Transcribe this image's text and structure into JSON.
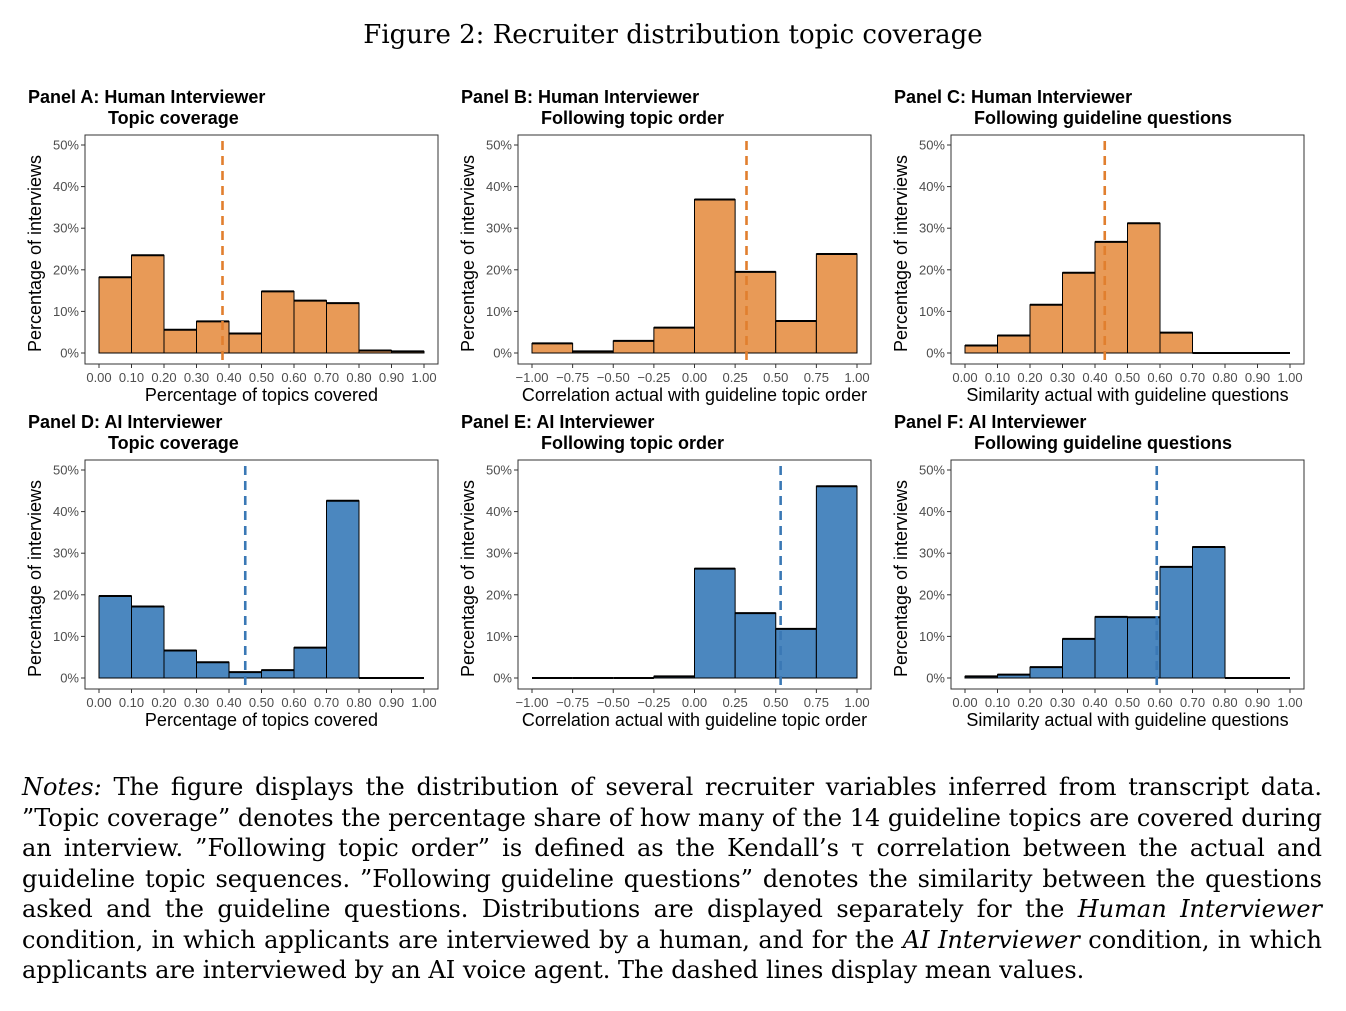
{
  "figure_title": "Figure 2: Recruiter distribution topic coverage",
  "colors": {
    "human": "#E89A57",
    "ai": "#4B87BF",
    "human_mean": "#E17F2E",
    "ai_mean": "#3A78B5"
  },
  "chart_data": [
    {
      "type": "bar",
      "panel_label": "Panel A: Human Interviewer",
      "title": "Topic coverage",
      "xlabel": "Percentage of topics covered",
      "ylabel": "Percentage of interviews",
      "color": "#E89A57",
      "mean_color": "#E17F2E",
      "xlim": [
        0,
        1
      ],
      "ylim": [
        0,
        50
      ],
      "xticks": [
        0,
        0.1,
        0.2,
        0.3,
        0.4,
        0.5,
        0.6,
        0.7,
        0.8,
        0.9,
        1.0
      ],
      "xtick_labels": [
        "0.00",
        "0.10",
        "0.20",
        "0.30",
        "0.40",
        "0.50",
        "0.60",
        "0.70",
        "0.80",
        "0.90",
        "1.00"
      ],
      "yticks": [
        0,
        10,
        20,
        30,
        40,
        50
      ],
      "ytick_labels": [
        "0%",
        "10%",
        "20%",
        "30%",
        "40%",
        "50%"
      ],
      "bins": [
        [
          0,
          0.1
        ],
        [
          0.1,
          0.2
        ],
        [
          0.2,
          0.3
        ],
        [
          0.3,
          0.4
        ],
        [
          0.4,
          0.5
        ],
        [
          0.5,
          0.6
        ],
        [
          0.6,
          0.7
        ],
        [
          0.7,
          0.8
        ],
        [
          0.8,
          0.9
        ],
        [
          0.9,
          1.0
        ]
      ],
      "values": [
        18.2,
        23.5,
        5.6,
        7.6,
        4.7,
        14.8,
        12.6,
        12.0,
        0.6,
        0.4
      ],
      "mean": 0.38
    },
    {
      "type": "bar",
      "panel_label": "Panel B: Human Interviewer",
      "title": "Following topic order",
      "xlabel": "Correlation actual with guideline topic order",
      "ylabel": "Percentage of interviews",
      "color": "#E89A57",
      "mean_color": "#E17F2E",
      "xlim": [
        -1,
        1
      ],
      "ylim": [
        0,
        50
      ],
      "xticks": [
        -1,
        -0.75,
        -0.5,
        -0.25,
        0,
        0.25,
        0.5,
        0.75,
        1
      ],
      "xtick_labels": [
        "−1.00",
        "−0.75",
        "−0.50",
        "−0.25",
        "0.00",
        "0.25",
        "0.50",
        "0.75",
        "1.00"
      ],
      "yticks": [
        0,
        10,
        20,
        30,
        40,
        50
      ],
      "ytick_labels": [
        "0%",
        "10%",
        "20%",
        "30%",
        "40%",
        "50%"
      ],
      "bins": [
        [
          -1,
          -0.75
        ],
        [
          -0.75,
          -0.5
        ],
        [
          -0.5,
          -0.25
        ],
        [
          -0.25,
          0
        ],
        [
          0,
          0.25
        ],
        [
          0.25,
          0.5
        ],
        [
          0.5,
          0.75
        ],
        [
          0.75,
          1
        ]
      ],
      "values": [
        2.3,
        0.4,
        2.9,
        6.1,
        36.9,
        19.5,
        7.7,
        23.8
      ],
      "mean": 0.32
    },
    {
      "type": "bar",
      "panel_label": "Panel C: Human Interviewer",
      "title": "Following guideline questions",
      "xlabel": "Similarity actual with guideline questions",
      "ylabel": "Percentage of interviews",
      "color": "#E89A57",
      "mean_color": "#E17F2E",
      "xlim": [
        0,
        1
      ],
      "ylim": [
        0,
        50
      ],
      "xticks": [
        0,
        0.1,
        0.2,
        0.3,
        0.4,
        0.5,
        0.6,
        0.7,
        0.8,
        0.9,
        1.0
      ],
      "xtick_labels": [
        "0.00",
        "0.10",
        "0.20",
        "0.30",
        "0.40",
        "0.50",
        "0.60",
        "0.70",
        "0.80",
        "0.90",
        "1.00"
      ],
      "yticks": [
        0,
        10,
        20,
        30,
        40,
        50
      ],
      "ytick_labels": [
        "0%",
        "10%",
        "20%",
        "30%",
        "40%",
        "50%"
      ],
      "bins": [
        [
          0,
          0.1
        ],
        [
          0.1,
          0.2
        ],
        [
          0.2,
          0.3
        ],
        [
          0.3,
          0.4
        ],
        [
          0.4,
          0.5
        ],
        [
          0.5,
          0.6
        ],
        [
          0.6,
          0.7
        ],
        [
          0.7,
          0.8
        ],
        [
          0.8,
          0.9
        ],
        [
          0.9,
          1.0
        ]
      ],
      "values": [
        1.8,
        4.2,
        11.6,
        19.3,
        26.7,
        31.2,
        4.9,
        0,
        0,
        0
      ],
      "mean": 0.43
    },
    {
      "type": "bar",
      "panel_label": "Panel D: AI Interviewer",
      "title": "Topic coverage",
      "xlabel": "Percentage of topics covered",
      "ylabel": "Percentage of interviews",
      "color": "#4B87BF",
      "mean_color": "#3A78B5",
      "xlim": [
        0,
        1
      ],
      "ylim": [
        0,
        50
      ],
      "xticks": [
        0,
        0.1,
        0.2,
        0.3,
        0.4,
        0.5,
        0.6,
        0.7,
        0.8,
        0.9,
        1.0
      ],
      "xtick_labels": [
        "0.00",
        "0.10",
        "0.20",
        "0.30",
        "0.40",
        "0.50",
        "0.60",
        "0.70",
        "0.80",
        "0.90",
        "1.00"
      ],
      "yticks": [
        0,
        10,
        20,
        30,
        40,
        50
      ],
      "ytick_labels": [
        "0%",
        "10%",
        "20%",
        "30%",
        "40%",
        "50%"
      ],
      "bins": [
        [
          0,
          0.1
        ],
        [
          0.1,
          0.2
        ],
        [
          0.2,
          0.3
        ],
        [
          0.3,
          0.4
        ],
        [
          0.4,
          0.5
        ],
        [
          0.5,
          0.6
        ],
        [
          0.6,
          0.7
        ],
        [
          0.7,
          0.8
        ],
        [
          0.8,
          0.9
        ],
        [
          0.9,
          1.0
        ]
      ],
      "values": [
        19.7,
        17.2,
        6.6,
        3.8,
        1.4,
        1.9,
        7.3,
        42.6,
        0,
        0
      ],
      "mean": 0.45
    },
    {
      "type": "bar",
      "panel_label": "Panel E: AI Interviewer",
      "title": "Following topic order",
      "xlabel": "Correlation actual with guideline topic order",
      "ylabel": "Percentage of interviews",
      "color": "#4B87BF",
      "mean_color": "#3A78B5",
      "xlim": [
        -1,
        1
      ],
      "ylim": [
        0,
        50
      ],
      "xticks": [
        -1,
        -0.75,
        -0.5,
        -0.25,
        0,
        0.25,
        0.5,
        0.75,
        1
      ],
      "xtick_labels": [
        "−1.00",
        "−0.75",
        "−0.50",
        "−0.25",
        "0.00",
        "0.25",
        "0.50",
        "0.75",
        "1.00"
      ],
      "yticks": [
        0,
        10,
        20,
        30,
        40,
        50
      ],
      "ytick_labels": [
        "0%",
        "10%",
        "20%",
        "30%",
        "40%",
        "50%"
      ],
      "bins": [
        [
          -1,
          -0.75
        ],
        [
          -0.75,
          -0.5
        ],
        [
          -0.5,
          -0.25
        ],
        [
          -0.25,
          0
        ],
        [
          0,
          0.25
        ],
        [
          0.25,
          0.5
        ],
        [
          0.5,
          0.75
        ],
        [
          0.75,
          1
        ]
      ],
      "values": [
        0,
        0,
        0,
        0.4,
        26.3,
        15.6,
        11.8,
        46.1
      ],
      "mean": 0.53
    },
    {
      "type": "bar",
      "panel_label": "Panel F: AI Interviewer",
      "title": "Following guideline questions",
      "xlabel": "Similarity actual with guideline questions",
      "ylabel": "Percentage of interviews",
      "color": "#4B87BF",
      "mean_color": "#3A78B5",
      "xlim": [
        0,
        1
      ],
      "ylim": [
        0,
        50
      ],
      "xticks": [
        0,
        0.1,
        0.2,
        0.3,
        0.4,
        0.5,
        0.6,
        0.7,
        0.8,
        0.9,
        1.0
      ],
      "xtick_labels": [
        "0.00",
        "0.10",
        "0.20",
        "0.30",
        "0.40",
        "0.50",
        "0.60",
        "0.70",
        "0.80",
        "0.90",
        "1.00"
      ],
      "yticks": [
        0,
        10,
        20,
        30,
        40,
        50
      ],
      "ytick_labels": [
        "0%",
        "10%",
        "20%",
        "30%",
        "40%",
        "50%"
      ],
      "bins": [
        [
          0,
          0.1
        ],
        [
          0.1,
          0.2
        ],
        [
          0.2,
          0.3
        ],
        [
          0.3,
          0.4
        ],
        [
          0.4,
          0.5
        ],
        [
          0.5,
          0.6
        ],
        [
          0.6,
          0.7
        ],
        [
          0.7,
          0.8
        ],
        [
          0.8,
          0.9
        ],
        [
          0.9,
          1.0
        ]
      ],
      "values": [
        0.4,
        0.8,
        2.6,
        9.4,
        14.7,
        14.6,
        26.7,
        31.5,
        0,
        0
      ],
      "mean": 0.59
    }
  ],
  "notes": {
    "label": "Notes:",
    "text_1": " The figure displays the distribution of several recruiter variables inferred from transcript data. ”Topic coverage” denotes the percentage share of how many of the 14 guideline topics are covered during an interview. ”Following topic order” is defined as the Kendall’s τ correlation between the actual and guideline topic sequences. ”Following guideline questions” denotes the similarity between the questions asked and the guideline questions. Distributions are displayed separately for the ",
    "human_condition": "Human Interviewer",
    "text_2": " condition, in which applicants are interviewed by a human, and for the ",
    "ai_condition": "AI Interviewer",
    "text_3": " condition, in which applicants are interviewed by an AI voice agent. The dashed lines display mean values."
  }
}
